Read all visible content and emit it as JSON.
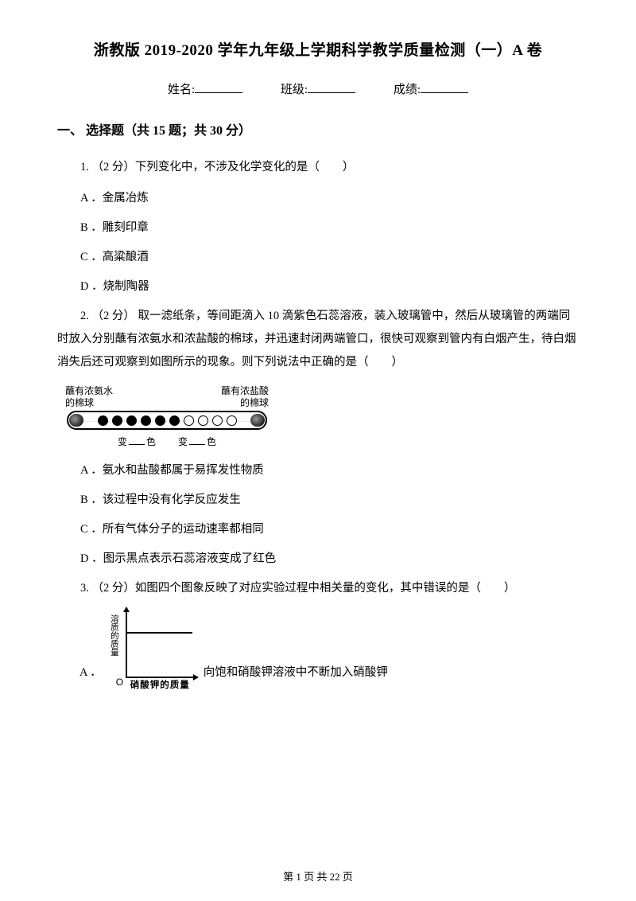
{
  "title": "浙教版 2019-2020 学年九年级上学期科学教学质量检测（一）A 卷",
  "info": {
    "name_label": "姓名:",
    "class_label": "班级:",
    "score_label": "成绩:"
  },
  "section": "一、 选择题（共 15 题；共 30 分）",
  "q1": {
    "stem": "1. （2 分）下列变化中，不涉及化学变化的是（　　）",
    "A": "A ．金属冶炼",
    "B": "B ．雕刻印章",
    "C": "C ．高粱酿酒",
    "D": "D ．烧制陶器"
  },
  "q2": {
    "stem": "2. （2 分） 取一滤纸条，等间距滴入 10 滴紫色石蕊溶液，装入玻璃管中，然后从玻璃管的两端同时放入分别蘸有浓氨水和浓盐酸的棉球，并迅速封闭两端管口，很快可观察到管内有白烟产生，待白烟消失后还可观察到如图所示的现象。则下列说法中正确的是（　　）",
    "diagram": {
      "left_label_l1": "蘸有浓氨水",
      "left_label_l2": "的棉球",
      "right_label_l1": "蘸有浓盐酸",
      "right_label_l2": "的棉球",
      "bian_left": "变",
      "se_left": "色",
      "bian_right": "变",
      "se_right": "色",
      "black_dots": 6,
      "white_dots": 4
    },
    "A": "A ．氨水和盐酸都属于易挥发性物质",
    "B": "B ．该过程中没有化学反应发生",
    "C": "C ．所有气体分子的运动速率都相同",
    "D": "D ．图示黑点表示石蕊溶液变成了红色"
  },
  "q3": {
    "stem": "3. （2 分）如图四个图象反映了对应实验过程中相关量的变化，其中错误的是（　　）",
    "graph": {
      "ylabel": "溶质的质量",
      "xlabel": "硝酸钾的质量",
      "origin": "O"
    },
    "A_prefix": "A ．",
    "A_text": "向饱和硝酸钾溶液中不断加入硝酸钾"
  },
  "footer": "第 1 页 共 22 页"
}
